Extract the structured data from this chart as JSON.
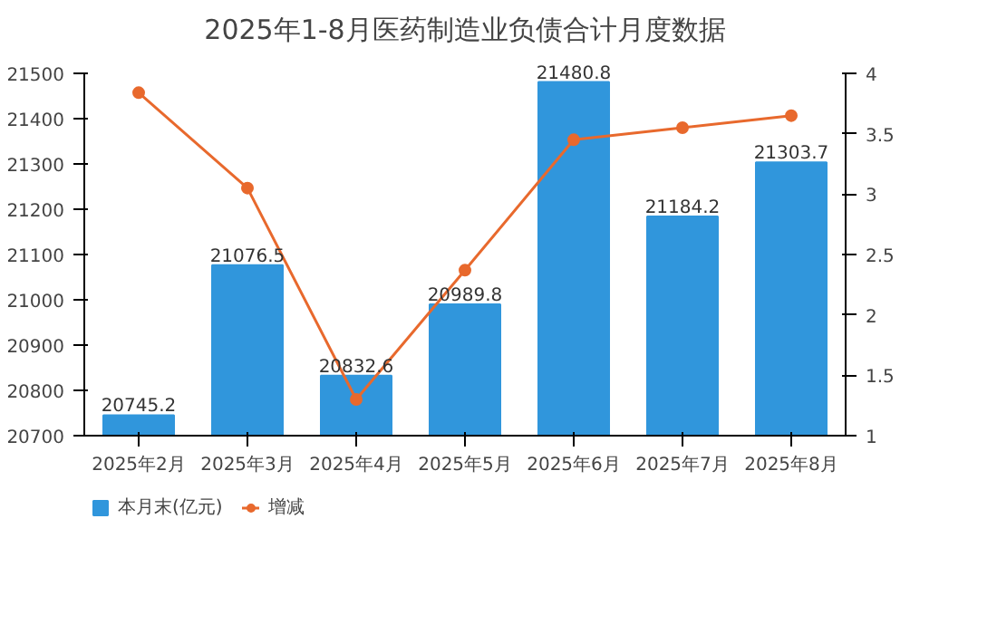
{
  "chart_data": {
    "type": "bar",
    "title": "2025年1-8月医药制造业负债合计月度数据",
    "categories": [
      "2025年2月",
      "2025年3月",
      "2025年4月",
      "2025年5月",
      "2025年6月",
      "2025年7月",
      "2025年8月"
    ],
    "series": [
      {
        "name": "本月末(亿元)",
        "color": "#3096dc",
        "values": [
          20745.2,
          21076.5,
          20832.6,
          20989.8,
          21480.8,
          21184.2,
          21303.7
        ],
        "value_labels": [
          "20745.2",
          "21076.5",
          "20832.6",
          "20989.8",
          "21480.8",
          "21184.2",
          "21303.7"
        ]
      },
      {
        "name": "增减",
        "type": "line",
        "axis": "y2",
        "color": "#e8692d",
        "values": [
          3.84,
          3.05,
          1.3,
          2.37,
          3.45,
          3.55,
          3.65
        ]
      }
    ],
    "ylim": [
      20700,
      21500
    ],
    "yticks": [
      20700,
      20800,
      20900,
      21000,
      21100,
      21200,
      21300,
      21400,
      21500
    ],
    "y2lim": [
      1,
      4
    ],
    "y2ticks": [
      1,
      1.5,
      2,
      2.5,
      3,
      3.5,
      4
    ],
    "marker": "circle",
    "grid": false,
    "legend": "bottom left"
  }
}
